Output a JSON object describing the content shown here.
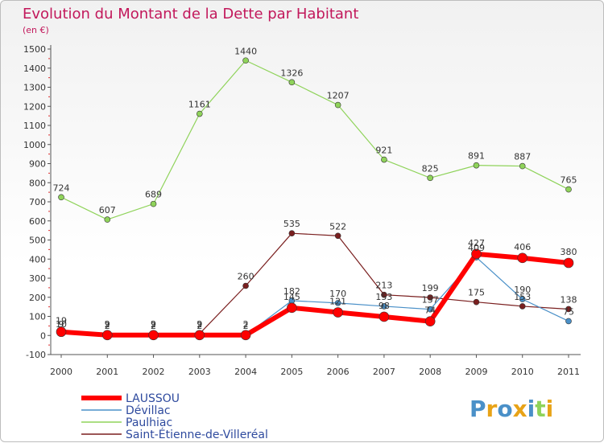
{
  "chart_data": {
    "type": "line",
    "title": "Evolution du Montant de la Dette par Habitant",
    "subtitle": "(en €)",
    "categories": [
      "2000",
      "2001",
      "2002",
      "2003",
      "2004",
      "2005",
      "2006",
      "2007",
      "2008",
      "2009",
      "2010",
      "2011"
    ],
    "ylim": [
      -100,
      1500
    ],
    "yticks": [
      -100,
      0,
      100,
      200,
      300,
      400,
      500,
      600,
      700,
      800,
      900,
      1000,
      1100,
      1200,
      1300,
      1400,
      1500
    ],
    "grid": false,
    "legend_position": "bottom-left",
    "series": [
      {
        "name": "LAUSSOU",
        "color": "#ff0000",
        "values": [
          19,
          2,
          2,
          2,
          2,
          145,
          121,
          98,
          74,
          427,
          406,
          380
        ]
      },
      {
        "name": "Dévillac",
        "color": "#4a90c8",
        "values": [
          9,
          2,
          2,
          2,
          2,
          182,
          170,
          153,
          137,
          409,
          190,
          75
        ]
      },
      {
        "name": "Paulhiac",
        "color": "#8fd35a",
        "values": [
          724,
          607,
          689,
          1161,
          1440,
          1326,
          1207,
          921,
          825,
          891,
          887,
          765
        ]
      },
      {
        "name": "Saint-Étienne-de-Villeréal",
        "color": "#7a1f1f",
        "values": [
          10,
          9,
          9,
          9,
          260,
          535,
          522,
          213,
          199,
          175,
          153,
          138
        ]
      }
    ]
  },
  "logo": {
    "text": "Proxiti",
    "letters": [
      "P",
      "r",
      "o",
      "x",
      "i",
      "t",
      "i"
    ],
    "colors": [
      "#4a90c8",
      "#e8a317",
      "#4a90c8",
      "#e8a317",
      "#4a90c8",
      "#8fd35a",
      "#e8a317"
    ]
  }
}
